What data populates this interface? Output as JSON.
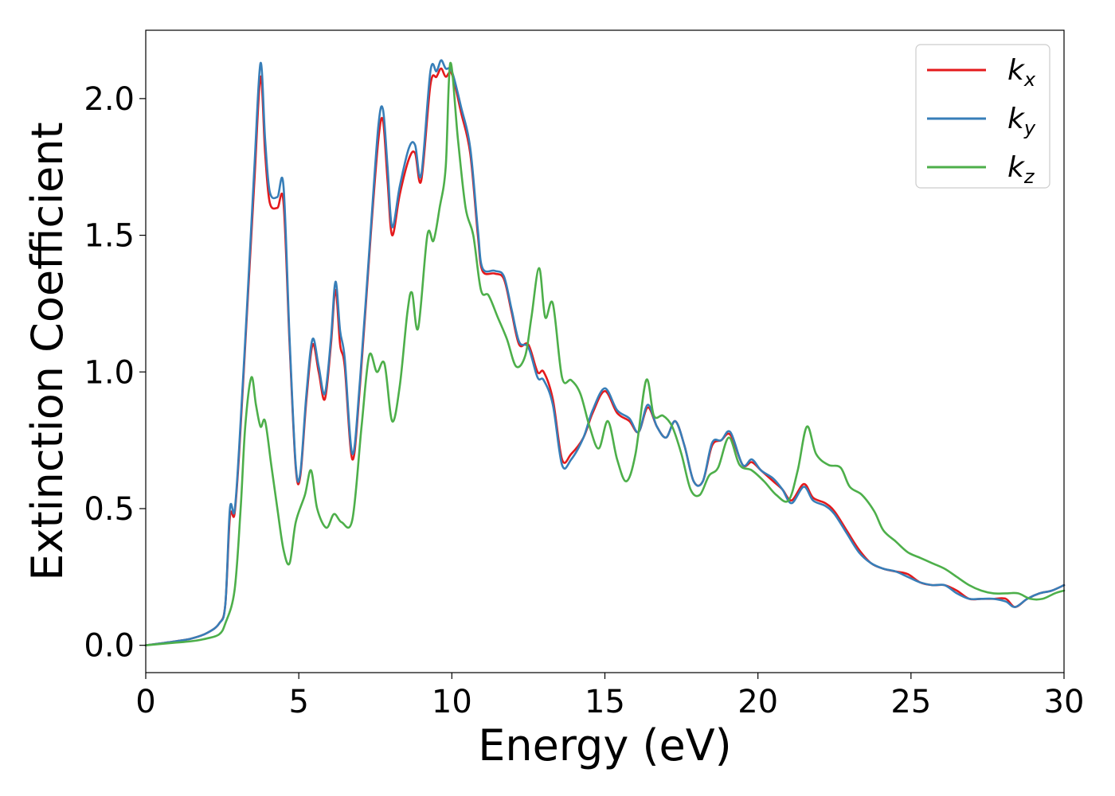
{
  "chart_data": {
    "type": "line",
    "title": "",
    "xlabel": "Energy (eV)",
    "ylabel": "Extinction Coefficient",
    "xlim": [
      0,
      30
    ],
    "ylim": [
      -0.1,
      2.25
    ],
    "xticks": [
      0,
      5,
      10,
      15,
      20,
      25,
      30
    ],
    "xtick_labels": [
      "0",
      "5",
      "10",
      "15",
      "20",
      "25",
      "30"
    ],
    "yticks": [
      0.0,
      0.5,
      1.0,
      1.5,
      2.0
    ],
    "ytick_labels": [
      "0.0",
      "0.5",
      "1.0",
      "1.5",
      "2.0"
    ],
    "grid": false,
    "legend_position": "top-right",
    "series": [
      {
        "name": "k",
        "subscript": "x",
        "color": "#e41a1c",
        "points": [
          [
            0,
            0
          ],
          [
            1,
            0.015
          ],
          [
            1.5,
            0.025
          ],
          [
            2,
            0.045
          ],
          [
            2.4,
            0.08
          ],
          [
            2.6,
            0.15
          ],
          [
            2.75,
            0.47
          ],
          [
            2.9,
            0.48
          ],
          [
            3.05,
            0.7
          ],
          [
            3.3,
            1.2
          ],
          [
            3.55,
            1.7
          ],
          [
            3.75,
            2.08
          ],
          [
            3.9,
            1.8
          ],
          [
            4.05,
            1.62
          ],
          [
            4.3,
            1.6
          ],
          [
            4.5,
            1.62
          ],
          [
            4.7,
            1.1
          ],
          [
            4.9,
            0.65
          ],
          [
            5.05,
            0.62
          ],
          [
            5.25,
            0.9
          ],
          [
            5.45,
            1.1
          ],
          [
            5.65,
            1.0
          ],
          [
            5.85,
            0.9
          ],
          [
            6.05,
            1.1
          ],
          [
            6.2,
            1.3
          ],
          [
            6.35,
            1.1
          ],
          [
            6.5,
            1.02
          ],
          [
            6.75,
            0.68
          ],
          [
            7.0,
            0.95
          ],
          [
            7.35,
            1.5
          ],
          [
            7.6,
            1.85
          ],
          [
            7.75,
            1.92
          ],
          [
            7.9,
            1.7
          ],
          [
            8.05,
            1.5
          ],
          [
            8.3,
            1.65
          ],
          [
            8.6,
            1.78
          ],
          [
            8.8,
            1.8
          ],
          [
            9.0,
            1.7
          ],
          [
            9.3,
            2.05
          ],
          [
            9.5,
            2.08
          ],
          [
            9.65,
            2.11
          ],
          [
            9.8,
            2.08
          ],
          [
            10.0,
            2.09
          ],
          [
            10.3,
            1.95
          ],
          [
            10.6,
            1.8
          ],
          [
            10.85,
            1.5
          ],
          [
            11.0,
            1.37
          ],
          [
            11.4,
            1.36
          ],
          [
            11.7,
            1.34
          ],
          [
            11.95,
            1.22
          ],
          [
            12.2,
            1.1
          ],
          [
            12.5,
            1.1
          ],
          [
            12.8,
            1.0
          ],
          [
            13.0,
            1.0
          ],
          [
            13.3,
            0.9
          ],
          [
            13.6,
            0.68
          ],
          [
            13.9,
            0.7
          ],
          [
            14.3,
            0.76
          ],
          [
            14.6,
            0.85
          ],
          [
            15.0,
            0.93
          ],
          [
            15.4,
            0.85
          ],
          [
            15.8,
            0.82
          ],
          [
            16.1,
            0.78
          ],
          [
            16.4,
            0.87
          ],
          [
            16.7,
            0.8
          ],
          [
            17.0,
            0.76
          ],
          [
            17.3,
            0.82
          ],
          [
            17.6,
            0.73
          ],
          [
            17.9,
            0.6
          ],
          [
            18.2,
            0.6
          ],
          [
            18.5,
            0.73
          ],
          [
            18.8,
            0.75
          ],
          [
            19.1,
            0.77
          ],
          [
            19.5,
            0.66
          ],
          [
            19.8,
            0.67
          ],
          [
            20.1,
            0.64
          ],
          [
            20.5,
            0.6
          ],
          [
            20.8,
            0.57
          ],
          [
            21.1,
            0.53
          ],
          [
            21.5,
            0.59
          ],
          [
            21.8,
            0.54
          ],
          [
            22.2,
            0.52
          ],
          [
            22.5,
            0.49
          ],
          [
            22.9,
            0.42
          ],
          [
            23.3,
            0.35
          ],
          [
            23.7,
            0.3
          ],
          [
            24.1,
            0.28
          ],
          [
            24.5,
            0.27
          ],
          [
            24.9,
            0.26
          ],
          [
            25.3,
            0.23
          ],
          [
            25.7,
            0.22
          ],
          [
            26.1,
            0.22
          ],
          [
            26.5,
            0.2
          ],
          [
            26.9,
            0.17
          ],
          [
            27.3,
            0.17
          ],
          [
            27.7,
            0.17
          ],
          [
            28.1,
            0.17
          ],
          [
            28.4,
            0.14
          ],
          [
            28.8,
            0.17
          ],
          [
            29.2,
            0.19
          ],
          [
            29.6,
            0.2
          ],
          [
            30,
            0.22
          ]
        ]
      },
      {
        "name": "k",
        "subscript": "y",
        "color": "#377eb8",
        "points": [
          [
            0,
            0
          ],
          [
            1,
            0.015
          ],
          [
            1.5,
            0.025
          ],
          [
            2,
            0.045
          ],
          [
            2.4,
            0.08
          ],
          [
            2.6,
            0.15
          ],
          [
            2.75,
            0.5
          ],
          [
            2.9,
            0.49
          ],
          [
            3.05,
            0.72
          ],
          [
            3.3,
            1.22
          ],
          [
            3.55,
            1.75
          ],
          [
            3.75,
            2.13
          ],
          [
            3.9,
            1.85
          ],
          [
            4.05,
            1.66
          ],
          [
            4.3,
            1.64
          ],
          [
            4.5,
            1.68
          ],
          [
            4.7,
            1.12
          ],
          [
            4.9,
            0.66
          ],
          [
            5.05,
            0.63
          ],
          [
            5.25,
            0.92
          ],
          [
            5.45,
            1.12
          ],
          [
            5.65,
            1.02
          ],
          [
            5.85,
            0.92
          ],
          [
            6.05,
            1.12
          ],
          [
            6.2,
            1.33
          ],
          [
            6.35,
            1.15
          ],
          [
            6.5,
            1.05
          ],
          [
            6.75,
            0.7
          ],
          [
            7.0,
            0.97
          ],
          [
            7.35,
            1.52
          ],
          [
            7.6,
            1.9
          ],
          [
            7.75,
            1.96
          ],
          [
            7.9,
            1.75
          ],
          [
            8.05,
            1.53
          ],
          [
            8.3,
            1.68
          ],
          [
            8.6,
            1.82
          ],
          [
            8.8,
            1.83
          ],
          [
            9.0,
            1.72
          ],
          [
            9.3,
            2.1
          ],
          [
            9.5,
            2.1
          ],
          [
            9.65,
            2.14
          ],
          [
            9.8,
            2.11
          ],
          [
            10.0,
            2.1
          ],
          [
            10.3,
            1.97
          ],
          [
            10.6,
            1.82
          ],
          [
            10.85,
            1.52
          ],
          [
            11.0,
            1.38
          ],
          [
            11.4,
            1.37
          ],
          [
            11.7,
            1.35
          ],
          [
            11.95,
            1.23
          ],
          [
            12.2,
            1.11
          ],
          [
            12.5,
            1.09
          ],
          [
            12.8,
            0.98
          ],
          [
            13.0,
            0.97
          ],
          [
            13.3,
            0.88
          ],
          [
            13.6,
            0.66
          ],
          [
            13.9,
            0.68
          ],
          [
            14.3,
            0.76
          ],
          [
            14.6,
            0.86
          ],
          [
            15.0,
            0.94
          ],
          [
            15.4,
            0.86
          ],
          [
            15.8,
            0.83
          ],
          [
            16.1,
            0.78
          ],
          [
            16.4,
            0.88
          ],
          [
            16.7,
            0.8
          ],
          [
            17.0,
            0.76
          ],
          [
            17.3,
            0.82
          ],
          [
            17.6,
            0.73
          ],
          [
            17.9,
            0.6
          ],
          [
            18.2,
            0.6
          ],
          [
            18.5,
            0.74
          ],
          [
            18.8,
            0.75
          ],
          [
            19.1,
            0.78
          ],
          [
            19.5,
            0.66
          ],
          [
            19.8,
            0.68
          ],
          [
            20.1,
            0.64
          ],
          [
            20.5,
            0.61
          ],
          [
            20.8,
            0.57
          ],
          [
            21.1,
            0.52
          ],
          [
            21.5,
            0.58
          ],
          [
            21.8,
            0.53
          ],
          [
            22.2,
            0.51
          ],
          [
            22.5,
            0.48
          ],
          [
            22.9,
            0.41
          ],
          [
            23.3,
            0.34
          ],
          [
            23.7,
            0.3
          ],
          [
            24.1,
            0.28
          ],
          [
            24.5,
            0.27
          ],
          [
            24.9,
            0.25
          ],
          [
            25.3,
            0.23
          ],
          [
            25.7,
            0.22
          ],
          [
            26.1,
            0.22
          ],
          [
            26.5,
            0.19
          ],
          [
            26.9,
            0.17
          ],
          [
            27.3,
            0.17
          ],
          [
            27.7,
            0.17
          ],
          [
            28.1,
            0.16
          ],
          [
            28.4,
            0.14
          ],
          [
            28.8,
            0.17
          ],
          [
            29.2,
            0.19
          ],
          [
            29.6,
            0.2
          ],
          [
            30,
            0.22
          ]
        ]
      },
      {
        "name": "k",
        "subscript": "z",
        "color": "#4daf4a",
        "points": [
          [
            0,
            0
          ],
          [
            1,
            0.01
          ],
          [
            1.5,
            0.015
          ],
          [
            2,
            0.025
          ],
          [
            2.4,
            0.04
          ],
          [
            2.6,
            0.08
          ],
          [
            2.9,
            0.2
          ],
          [
            3.1,
            0.5
          ],
          [
            3.25,
            0.8
          ],
          [
            3.45,
            0.98
          ],
          [
            3.6,
            0.88
          ],
          [
            3.75,
            0.8
          ],
          [
            3.9,
            0.82
          ],
          [
            4.1,
            0.66
          ],
          [
            4.3,
            0.5
          ],
          [
            4.5,
            0.35
          ],
          [
            4.7,
            0.3
          ],
          [
            4.9,
            0.45
          ],
          [
            5.2,
            0.55
          ],
          [
            5.4,
            0.64
          ],
          [
            5.6,
            0.5
          ],
          [
            5.9,
            0.43
          ],
          [
            6.15,
            0.48
          ],
          [
            6.4,
            0.45
          ],
          [
            6.75,
            0.46
          ],
          [
            7.05,
            0.8
          ],
          [
            7.3,
            1.06
          ],
          [
            7.55,
            1.0
          ],
          [
            7.8,
            1.03
          ],
          [
            8.05,
            0.82
          ],
          [
            8.3,
            0.95
          ],
          [
            8.55,
            1.22
          ],
          [
            8.7,
            1.29
          ],
          [
            8.9,
            1.16
          ],
          [
            9.2,
            1.5
          ],
          [
            9.4,
            1.48
          ],
          [
            9.6,
            1.6
          ],
          [
            9.8,
            1.75
          ],
          [
            9.95,
            2.13
          ],
          [
            10.2,
            1.85
          ],
          [
            10.45,
            1.6
          ],
          [
            10.7,
            1.5
          ],
          [
            10.95,
            1.3
          ],
          [
            11.2,
            1.28
          ],
          [
            11.5,
            1.2
          ],
          [
            11.8,
            1.12
          ],
          [
            12.1,
            1.02
          ],
          [
            12.4,
            1.06
          ],
          [
            12.6,
            1.2
          ],
          [
            12.85,
            1.38
          ],
          [
            13.05,
            1.2
          ],
          [
            13.3,
            1.25
          ],
          [
            13.6,
            0.98
          ],
          [
            13.9,
            0.97
          ],
          [
            14.2,
            0.92
          ],
          [
            14.5,
            0.8
          ],
          [
            14.8,
            0.72
          ],
          [
            15.1,
            0.82
          ],
          [
            15.4,
            0.68
          ],
          [
            15.7,
            0.6
          ],
          [
            16.0,
            0.7
          ],
          [
            16.35,
            0.97
          ],
          [
            16.6,
            0.84
          ],
          [
            16.9,
            0.84
          ],
          [
            17.2,
            0.8
          ],
          [
            17.5,
            0.7
          ],
          [
            17.8,
            0.57
          ],
          [
            18.1,
            0.55
          ],
          [
            18.4,
            0.62
          ],
          [
            18.7,
            0.65
          ],
          [
            19.05,
            0.76
          ],
          [
            19.4,
            0.66
          ],
          [
            19.8,
            0.64
          ],
          [
            20.2,
            0.6
          ],
          [
            20.6,
            0.55
          ],
          [
            21.0,
            0.53
          ],
          [
            21.3,
            0.64
          ],
          [
            21.6,
            0.8
          ],
          [
            21.9,
            0.7
          ],
          [
            22.3,
            0.66
          ],
          [
            22.7,
            0.65
          ],
          [
            23.0,
            0.58
          ],
          [
            23.4,
            0.55
          ],
          [
            23.8,
            0.49
          ],
          [
            24.1,
            0.42
          ],
          [
            24.5,
            0.38
          ],
          [
            24.9,
            0.34
          ],
          [
            25.3,
            0.32
          ],
          [
            25.7,
            0.3
          ],
          [
            26.1,
            0.28
          ],
          [
            26.5,
            0.25
          ],
          [
            26.9,
            0.22
          ],
          [
            27.3,
            0.2
          ],
          [
            27.7,
            0.19
          ],
          [
            28.1,
            0.19
          ],
          [
            28.5,
            0.19
          ],
          [
            28.9,
            0.17
          ],
          [
            29.3,
            0.17
          ],
          [
            29.7,
            0.19
          ],
          [
            30,
            0.2
          ]
        ]
      }
    ]
  }
}
